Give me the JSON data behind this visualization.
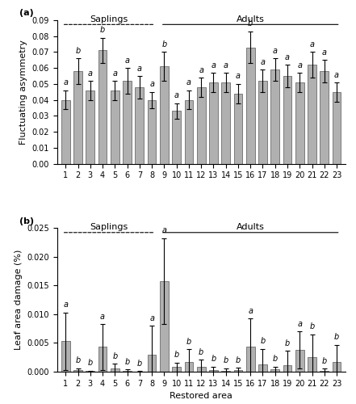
{
  "panel_a": {
    "categories": [
      1,
      2,
      3,
      4,
      5,
      6,
      7,
      8,
      9,
      10,
      11,
      12,
      13,
      14,
      15,
      16,
      17,
      18,
      19,
      20,
      21,
      22,
      23
    ],
    "values": [
      0.04,
      0.058,
      0.046,
      0.071,
      0.046,
      0.052,
      0.048,
      0.04,
      0.061,
      0.033,
      0.04,
      0.048,
      0.051,
      0.051,
      0.044,
      0.073,
      0.052,
      0.059,
      0.055,
      0.051,
      0.062,
      0.058,
      0.045
    ],
    "errors": [
      0.006,
      0.008,
      0.006,
      0.008,
      0.006,
      0.008,
      0.007,
      0.005,
      0.009,
      0.005,
      0.006,
      0.006,
      0.006,
      0.006,
      0.006,
      0.01,
      0.007,
      0.007,
      0.007,
      0.006,
      0.008,
      0.007,
      0.006
    ],
    "letters": [
      "a",
      "b",
      "a",
      "b",
      "a",
      "a",
      "a",
      "a",
      "b",
      "a",
      "a",
      "a",
      "a",
      "a",
      "a",
      "b",
      "a",
      "a",
      "a",
      "a",
      "a",
      "a",
      "a"
    ],
    "ylabel": "Fluctuating asymmetry",
    "ylim": [
      0,
      0.09
    ],
    "yticks": [
      0,
      0.01,
      0.02,
      0.03,
      0.04,
      0.05,
      0.06,
      0.07,
      0.08,
      0.09
    ],
    "saplings_range": [
      1,
      8
    ],
    "adults_range": [
      9,
      23
    ],
    "panel_label": "(a)"
  },
  "panel_b": {
    "categories": [
      1,
      2,
      3,
      4,
      5,
      6,
      7,
      8,
      9,
      10,
      11,
      12,
      13,
      14,
      15,
      16,
      17,
      18,
      19,
      20,
      21,
      22,
      23
    ],
    "values": [
      0.0053,
      0.0003,
      0.0001,
      0.0043,
      0.0006,
      0.0001,
      5e-05,
      0.003,
      0.0158,
      0.0008,
      0.0017,
      0.0009,
      0.0003,
      0.0002,
      0.0003,
      0.0043,
      0.0012,
      0.0004,
      0.0011,
      0.0038,
      0.0025,
      0.0001,
      0.0017
    ],
    "errors": [
      0.005,
      0.0003,
      0.0001,
      0.004,
      0.0008,
      0.0003,
      5e-05,
      0.005,
      0.0075,
      0.0008,
      0.0022,
      0.0012,
      0.0006,
      0.0004,
      0.0004,
      0.005,
      0.0028,
      0.0005,
      0.0025,
      0.0032,
      0.004,
      0.0004,
      0.003
    ],
    "letters": [
      "a",
      "b",
      "b",
      "a",
      "b",
      "b",
      "b",
      "a",
      "a",
      "b",
      "b",
      "b",
      "b",
      "b",
      "b",
      "a",
      "b",
      "b",
      "b",
      "a",
      "b",
      "b",
      "b"
    ],
    "ylabel": "Leaf area damage (%)",
    "ylim": [
      0,
      0.025
    ],
    "yticks": [
      0,
      0.005,
      0.01,
      0.015,
      0.02,
      0.025
    ],
    "saplings_range": [
      1,
      8
    ],
    "adults_range": [
      9,
      23
    ],
    "panel_label": "(b)",
    "xlabel": "Restored area"
  },
  "bar_color": "#b0b0b0",
  "bar_edgecolor": "#555555",
  "bar_width": 0.7,
  "saplings_label": "Saplings",
  "adults_label": "Adults",
  "fontsize_tick": 7,
  "fontsize_label": 8,
  "fontsize_letter": 7,
  "fontsize_panel": 8,
  "fontsize_group": 8
}
